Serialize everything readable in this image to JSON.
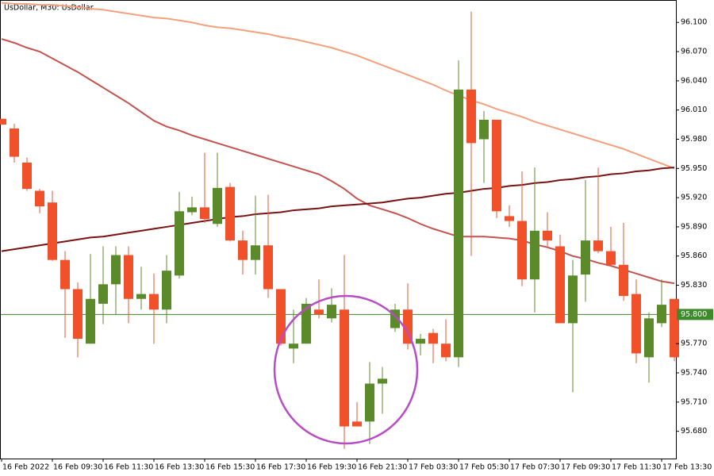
{
  "chart_data": {
    "type": "candlestick",
    "title": "UsDollar, M30:  UsDollar",
    "categories": [
      "16 Feb 2022",
      null,
      null,
      null,
      "16 Feb 09:30",
      null,
      null,
      null,
      "16 Feb 11:30",
      null,
      null,
      null,
      "16 Feb 13:30",
      null,
      null,
      null,
      "16 Feb 15:30",
      null,
      null,
      null,
      "16 Feb 17:30",
      null,
      null,
      null,
      "16 Feb 19:30",
      null,
      null,
      null,
      "16 Feb 21:30",
      null,
      null,
      null,
      "17 Feb 03:30",
      null,
      null,
      null,
      "17 Feb 05:30",
      null,
      null,
      null,
      "17 Feb 07:30",
      null,
      null,
      null,
      "17 Feb 09:30",
      null,
      null,
      null,
      "17 Feb 11:30",
      null,
      null,
      null,
      "17 Feb 13:30",
      null
    ],
    "open": [
      96.001,
      95.991,
      95.956,
      95.927,
      95.915,
      95.856,
      95.826,
      95.77,
      95.811,
      95.831,
      95.861,
      95.816,
      95.821,
      95.805,
      95.84,
      95.905,
      95.91,
      95.893,
      95.931,
      95.876,
      95.856,
      95.871,
      95.826,
      95.765,
      95.77,
      95.805,
      95.796,
      95.805,
      95.69,
      95.69,
      95.729,
      95.786,
      95.805,
      95.77,
      95.781,
      95.77,
      95.756,
      96.031,
      95.98,
      96.0,
      95.901,
      95.896,
      95.836,
      95.886,
      95.87,
      95.791,
      95.841,
      95.876,
      95.865,
      95.851,
      95.821,
      95.756,
      95.791,
      95.816
    ],
    "high": [
      96.001,
      95.996,
      95.961,
      95.929,
      95.927,
      95.865,
      95.833,
      95.862,
      95.87,
      95.87,
      95.87,
      95.849,
      95.842,
      95.861,
      95.926,
      95.921,
      95.966,
      95.966,
      95.935,
      95.886,
      95.922,
      95.923,
      95.826,
      95.805,
      95.817,
      95.836,
      95.827,
      95.861,
      95.71,
      95.751,
      95.746,
      95.811,
      95.832,
      95.78,
      95.785,
      95.795,
      96.061,
      96.111,
      96.009,
      96.0,
      95.912,
      95.947,
      95.951,
      95.905,
      95.882,
      95.856,
      95.938,
      95.951,
      95.89,
      95.894,
      95.836,
      95.802,
      95.836,
      95.816
    ],
    "low": [
      95.995,
      95.956,
      95.927,
      95.904,
      95.855,
      95.776,
      95.756,
      95.77,
      95.79,
      95.8,
      95.791,
      95.805,
      95.77,
      95.791,
      95.837,
      95.902,
      95.894,
      95.89,
      95.875,
      95.841,
      95.841,
      95.817,
      95.768,
      95.75,
      95.77,
      95.796,
      95.792,
      95.662,
      95.685,
      95.667,
      95.698,
      95.782,
      95.764,
      95.758,
      95.75,
      95.752,
      95.746,
      95.86,
      95.935,
      95.899,
      95.89,
      95.829,
      95.802,
      95.87,
      95.791,
      95.72,
      95.813,
      95.863,
      95.849,
      95.814,
      95.75,
      95.73,
      95.787,
      95.752
    ],
    "close": [
      95.995,
      95.962,
      95.929,
      95.911,
      95.856,
      95.826,
      95.775,
      95.816,
      95.831,
      95.861,
      95.816,
      95.821,
      95.805,
      95.845,
      95.906,
      95.91,
      95.898,
      95.93,
      95.876,
      95.856,
      95.871,
      95.826,
      95.77,
      95.77,
      95.811,
      95.8,
      95.81,
      95.685,
      95.685,
      95.729,
      95.734,
      95.805,
      95.77,
      95.775,
      95.77,
      95.756,
      96.031,
      95.976,
      96.0,
      95.906,
      95.896,
      95.836,
      95.886,
      95.876,
      95.791,
      95.84,
      95.876,
      95.865,
      95.851,
      95.819,
      95.76,
      95.796,
      95.81,
      95.756
    ],
    "up_color": "#5b8a2b",
    "down_color": "#f0502a",
    "moving_averages": [
      {
        "color": "#f4a07c",
        "values": [
          96.12,
          96.119,
          96.119,
          96.118,
          96.118,
          96.117,
          96.116,
          96.114,
          96.113,
          96.111,
          96.109,
          96.107,
          96.105,
          96.104,
          96.102,
          96.1,
          96.097,
          96.095,
          96.094,
          96.092,
          96.09,
          96.088,
          96.085,
          96.083,
          96.08,
          96.077,
          96.074,
          96.07,
          96.066,
          96.061,
          96.056,
          96.051,
          96.046,
          96.041,
          96.036,
          96.03,
          96.025,
          96.02,
          96.016,
          96.011,
          96.007,
          96.003,
          95.998,
          95.994,
          95.99,
          95.986,
          95.982,
          95.978,
          95.974,
          95.97,
          95.965,
          95.96,
          95.955,
          95.95
        ]
      },
      {
        "color": "#c4524e",
        "values": [
          96.083,
          96.079,
          96.074,
          96.07,
          96.063,
          96.056,
          96.049,
          96.041,
          96.033,
          96.025,
          96.017,
          96.008,
          95.999,
          95.993,
          95.989,
          95.984,
          95.98,
          95.976,
          95.972,
          95.968,
          95.964,
          95.96,
          95.956,
          95.952,
          95.948,
          95.944,
          95.937,
          95.929,
          95.919,
          95.912,
          95.908,
          95.904,
          95.899,
          95.893,
          95.888,
          95.884,
          95.88,
          95.88,
          95.88,
          95.879,
          95.878,
          95.876,
          95.872,
          95.869,
          95.865,
          95.86,
          95.857,
          95.853,
          95.85,
          95.846,
          95.842,
          95.838,
          95.834,
          95.832
        ]
      },
      {
        "color": "#7a1212",
        "values": [
          95.865,
          95.867,
          95.869,
          95.871,
          95.873,
          95.875,
          95.877,
          95.879,
          95.88,
          95.882,
          95.884,
          95.886,
          95.888,
          95.89,
          95.892,
          95.894,
          95.896,
          95.898,
          95.9,
          95.901,
          95.903,
          95.904,
          95.905,
          95.907,
          95.908,
          95.909,
          95.911,
          95.912,
          95.913,
          95.914,
          95.915,
          95.917,
          95.919,
          95.92,
          95.922,
          95.924,
          95.925,
          95.927,
          95.929,
          95.93,
          95.932,
          95.933,
          95.935,
          95.936,
          95.938,
          95.939,
          95.941,
          95.942,
          95.944,
          95.945,
          95.947,
          95.948,
          95.95,
          95.951
        ]
      }
    ],
    "ylim": [
      95.652,
      96.123
    ],
    "yticks": [
      {
        "value": 96.1,
        "label": "96.100"
      },
      {
        "value": 96.07,
        "label": "96.070"
      },
      {
        "value": 96.04,
        "label": "96.040"
      },
      {
        "value": 96.01,
        "label": "96.010"
      },
      {
        "value": 95.98,
        "label": "95.980"
      },
      {
        "value": 95.95,
        "label": "95.950"
      },
      {
        "value": 95.92,
        "label": "95.920"
      },
      {
        "value": 95.89,
        "label": "95.890"
      },
      {
        "value": 95.86,
        "label": "95.860"
      },
      {
        "value": 95.83,
        "label": "95.830"
      },
      {
        "value": 95.77,
        "label": "95.770"
      },
      {
        "value": 95.74,
        "label": "95.740"
      },
      {
        "value": 95.71,
        "label": "95.710"
      },
      {
        "value": 95.68,
        "label": "95.680"
      }
    ],
    "current_price": {
      "value": 95.8,
      "label": "95.800"
    },
    "current_price_color": "#3d8a2a"
  }
}
